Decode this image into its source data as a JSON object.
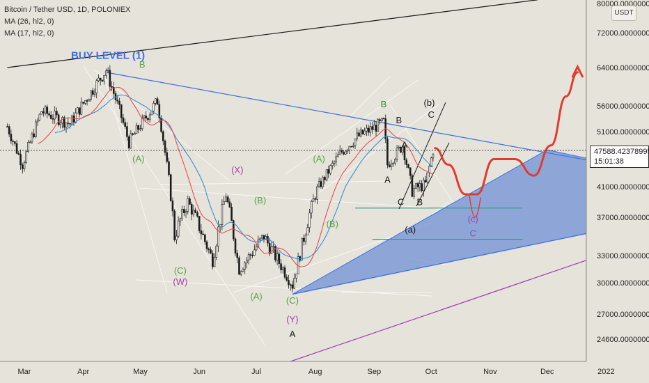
{
  "legend": {
    "symbol": "Bitcoin / Tether USD, 1D, POLONIEX",
    "ma1": "MA (26, hl2, 0)",
    "ma2": "MA (17, hl2, 0)"
  },
  "price_axis": {
    "unit": "USDT",
    "current_price": "47588.42378995",
    "countdown": "15:01:38"
  },
  "colors": {
    "background": "#e6e3da",
    "up_candle": "#1c1c1c",
    "ma26": "#3a8fd4",
    "ma17": "#e05050",
    "trendline_blue": "#3b6fe0",
    "wedge_fill": "#6f92d6",
    "projection_red": "#e23a2e",
    "support_green": "#2e9a85",
    "purple_line": "#9b3fb5",
    "wave_green": "#58a040",
    "wave_purple": "#a040a8"
  },
  "chart_data": {
    "type": "candlestick",
    "title": "Bitcoin / Tether USD, 1D, POLONIEX",
    "xlabel": "",
    "ylabel": "",
    "ylim": [
      22500,
      80000
    ],
    "price_ticks": [
      {
        "value": 80000,
        "label": "80000.00000000"
      },
      {
        "value": 72000,
        "label": "72000.00000000"
      },
      {
        "value": 64000,
        "label": "64000.00000000"
      },
      {
        "value": 56000,
        "label": "56000.00000000"
      },
      {
        "value": 51000,
        "label": "51000.00000000"
      },
      {
        "value": 41000,
        "label": "41000.00000000"
      },
      {
        "value": 37000,
        "label": "37000.00000000"
      },
      {
        "value": 33000,
        "label": "33000.00000000"
      },
      {
        "value": 30000,
        "label": "30000.00000000"
      },
      {
        "value": 27000,
        "label": "27000.00000000"
      },
      {
        "value": 24600,
        "label": "24600.00000000"
      }
    ],
    "time_ticks": [
      "Mar",
      "Apr",
      "May",
      "Jun",
      "Jul",
      "Aug",
      "Sep",
      "Oct",
      "Nov",
      "Dec",
      "2022"
    ],
    "time_tick_dates": [
      "2021-03-01",
      "2021-04-01",
      "2021-05-01",
      "2021-06-01",
      "2021-07-01",
      "2021-08-01",
      "2021-09-01",
      "2021-10-01",
      "2021-11-01",
      "2021-12-01",
      "2022-01-01"
    ],
    "grid": false,
    "series": [
      {
        "name": "MA (26, hl2, 0)",
        "kind": "ma"
      },
      {
        "name": "MA (17, hl2, 0)",
        "kind": "ma"
      }
    ],
    "price_path": [
      {
        "date": "2021-02-20",
        "price": 52000
      },
      {
        "date": "2021-02-28",
        "price": 45000
      },
      {
        "date": "2021-03-10",
        "price": 55000
      },
      {
        "date": "2021-03-25",
        "price": 52500
      },
      {
        "date": "2021-04-13",
        "price": 63500
      },
      {
        "date": "2021-04-25",
        "price": 49000
      },
      {
        "date": "2021-05-10",
        "price": 57000
      },
      {
        "date": "2021-05-19",
        "price": 35000
      },
      {
        "date": "2021-05-26",
        "price": 39000
      },
      {
        "date": "2021-06-08",
        "price": 32500
      },
      {
        "date": "2021-06-15",
        "price": 40000
      },
      {
        "date": "2021-06-22",
        "price": 31500
      },
      {
        "date": "2021-07-05",
        "price": 35000
      },
      {
        "date": "2021-07-20",
        "price": 29800
      },
      {
        "date": "2021-08-01",
        "price": 40000
      },
      {
        "date": "2021-08-14",
        "price": 47000
      },
      {
        "date": "2021-08-23",
        "price": 50000
      },
      {
        "date": "2021-09-06",
        "price": 52800
      },
      {
        "date": "2021-09-08",
        "price": 45000
      },
      {
        "date": "2021-09-16",
        "price": 48500
      },
      {
        "date": "2021-09-21",
        "price": 40500
      },
      {
        "date": "2021-09-28",
        "price": 41500
      },
      {
        "date": "2021-10-02",
        "price": 47588
      }
    ],
    "drawings": {
      "lines": [
        {
          "name": "resistance-line-black",
          "color": "#1a1a1a",
          "from": {
            "date": "2021-02-20",
            "price": 64000
          },
          "to": {
            "date": "2021-11-26",
            "price": 81000
          }
        },
        {
          "name": "buy-level-descending-line",
          "color": "#3b6fe0",
          "from": {
            "date": "2021-04-13",
            "price": 63000
          },
          "to": {
            "date": "2022-01-20",
            "price": 44000
          }
        },
        {
          "name": "wedge-lower-line",
          "color": "#3b6fe0",
          "from": {
            "date": "2021-07-20",
            "price": 28900
          },
          "to": {
            "date": "2022-01-20",
            "price": 36500
          }
        },
        {
          "name": "purple-support-line",
          "color": "#9b3fb5",
          "from": {
            "date": "2021-07-19",
            "price": 22500
          },
          "to": {
            "date": "2022-01-20",
            "price": 34500
          }
        },
        {
          "name": "support-level-38000",
          "color": "#2e9a85",
          "from": {
            "date": "2021-08-22",
            "price": 38200
          },
          "to": {
            "date": "2021-11-18",
            "price": 38200
          }
        },
        {
          "name": "support-level-34500",
          "color": "#2e9a85",
          "from": {
            "date": "2021-08-31",
            "price": 34700
          },
          "to": {
            "date": "2021-11-18",
            "price": 34700
          }
        }
      ],
      "wedge": [
        {
          "date": "2021-07-20",
          "price": 28900
        },
        {
          "date": "2021-12-01",
          "price": 47700
        },
        {
          "date": "2022-01-20",
          "price": 44000
        },
        {
          "date": "2022-01-20",
          "price": 36500
        }
      ],
      "projection": [
        {
          "date": "2021-10-03",
          "price": 48000
        },
        {
          "date": "2021-10-10",
          "price": 45000
        },
        {
          "date": "2021-10-19",
          "price": 40000
        },
        {
          "date": "2021-10-25",
          "price": 40000
        },
        {
          "date": "2021-11-03",
          "price": 46000
        },
        {
          "date": "2021-11-14",
          "price": 46000
        },
        {
          "date": "2021-11-24",
          "price": 43000
        },
        {
          "date": "2021-12-03",
          "price": 48500
        },
        {
          "date": "2021-12-11",
          "price": 58000
        },
        {
          "date": "2021-12-17",
          "price": 63000
        }
      ]
    },
    "annotations": [
      {
        "text": "BUY LEVEL (1)",
        "color": "#3b6fe0",
        "date": "2021-04-14",
        "price": 66000
      },
      {
        "text": "B",
        "color": "#58a040",
        "date": "2021-05-02",
        "price": 64000
      },
      {
        "text": "(A)",
        "color": "#58a040",
        "date": "2021-04-30",
        "price": 45500
      },
      {
        "text": "(X)",
        "color": "#a040a8",
        "date": "2021-06-21",
        "price": 43500
      },
      {
        "text": "(B)",
        "color": "#58a040",
        "date": "2021-07-03",
        "price": 38800
      },
      {
        "text": "(C)",
        "color": "#58a040",
        "date": "2021-05-22",
        "price": 31000
      },
      {
        "text": "(W)",
        "color": "#a040a8",
        "date": "2021-05-22",
        "price": 29800
      },
      {
        "text": "(A)",
        "color": "#58a040",
        "date": "2021-07-01",
        "price": 28400
      },
      {
        "text": "(A)",
        "color": "#58a040",
        "date": "2021-08-03",
        "price": 45500
      },
      {
        "text": "(B)",
        "color": "#58a040",
        "date": "2021-08-10",
        "price": 36000
      },
      {
        "text": "(C)",
        "color": "#58a040",
        "date": "2021-07-20",
        "price": 28000
      },
      {
        "text": "(Y)",
        "color": "#a040a8",
        "date": "2021-07-20",
        "price": 26200
      },
      {
        "text": "A",
        "color": "#1a1a1a",
        "date": "2021-07-20",
        "price": 24800
      },
      {
        "text": "B",
        "color": "#2a8a28",
        "date": "2021-09-06",
        "price": 55700
      },
      {
        "text": "B",
        "color": "#1a1a1a",
        "date": "2021-09-14",
        "price": 52600
      },
      {
        "text": "A",
        "color": "#1a1a1a",
        "date": "2021-09-17",
        "price": 48000
      },
      {
        "text": "A",
        "color": "#1a1a1a",
        "date": "2021-09-08",
        "price": 41700
      },
      {
        "text": "C",
        "color": "#1a1a1a",
        "date": "2021-09-15",
        "price": 38600
      },
      {
        "text": "B",
        "color": "#1a1a1a",
        "date": "2021-09-25",
        "price": 38600
      },
      {
        "text": "(b)",
        "color": "#1a1a1a",
        "date": "2021-09-30",
        "price": 56000
      },
      {
        "text": "C",
        "color": "#1a1a1a",
        "date": "2021-10-01",
        "price": 53700
      },
      {
        "text": "(a)",
        "color": "#1a1a1a",
        "date": "2021-09-20",
        "price": 35400
      },
      {
        "text": "(c)",
        "color": "#a040a8",
        "date": "2021-10-23",
        "price": 36500
      },
      {
        "text": "C",
        "color": "#a040a8",
        "date": "2021-10-23",
        "price": 35000
      }
    ]
  }
}
